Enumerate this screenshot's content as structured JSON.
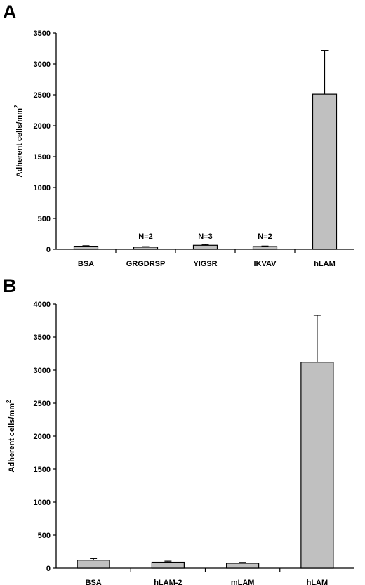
{
  "panels": [
    {
      "letter": "A"
    },
    {
      "letter": "B"
    }
  ],
  "chart_data": [
    {
      "type": "bar",
      "panel": "A",
      "title": "",
      "xlabel": "",
      "ylabel": "Adherent cells/mm",
      "ylabel_superscript": "2",
      "ylim": [
        0,
        3500
      ],
      "yticks": [
        "0",
        "500",
        "1000",
        "1500",
        "2000",
        "2500",
        "3000",
        "3500"
      ],
      "categories": [
        "BSA",
        "GRGDRSP",
        "YIGSR",
        "IKVAV",
        "hLAM"
      ],
      "values": [
        50,
        35,
        65,
        45,
        2510
      ],
      "errors": [
        8,
        8,
        12,
        8,
        710
      ],
      "annotations": [
        "",
        "N=2",
        "N=3",
        "N=2",
        ""
      ],
      "grid": false,
      "bar_color": "#c0c0c0"
    },
    {
      "type": "bar",
      "panel": "B",
      "title": "",
      "xlabel": "",
      "ylabel": "Adherent cells/mm",
      "ylabel_superscript": "2",
      "ylim": [
        0,
        4000
      ],
      "yticks": [
        "0",
        "500",
        "1000",
        "1500",
        "2000",
        "2500",
        "3000",
        "3500",
        "4000"
      ],
      "categories": [
        "BSA",
        "hLAM-2",
        "mLAM",
        "hLAM"
      ],
      "values": [
        120,
        90,
        75,
        3120
      ],
      "errors": [
        25,
        15,
        12,
        710
      ],
      "annotations": [
        "",
        "",
        "",
        ""
      ],
      "grid": false,
      "bar_color": "#c0c0c0"
    }
  ]
}
